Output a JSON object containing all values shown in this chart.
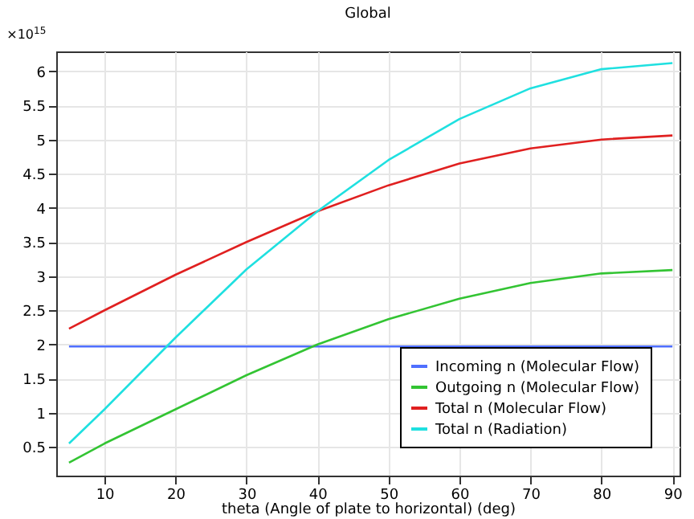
{
  "chart_data": {
    "type": "line",
    "title": "Global",
    "xlabel": "theta (Angle of plate to horizontal) (deg)",
    "x": [
      5,
      10,
      20,
      30,
      40,
      50,
      60,
      70,
      80,
      90
    ],
    "series": [
      {
        "name": "Incoming n (Molecular Flow)",
        "color": "#4f6fff",
        "values": [
          1.97,
          1.97,
          1.97,
          1.97,
          1.97,
          1.97,
          1.97,
          1.97,
          1.97,
          1.97
        ]
      },
      {
        "name": "Outgoing n (Molecular Flow)",
        "color": "#33c433",
        "values": [
          0.27,
          0.55,
          1.05,
          1.55,
          2.0,
          2.37,
          2.67,
          2.9,
          3.04,
          3.09
        ]
      },
      {
        "name": "Total n (Molecular Flow)",
        "color": "#e02020",
        "values": [
          2.23,
          2.5,
          3.02,
          3.5,
          3.95,
          4.33,
          4.65,
          4.87,
          5.0,
          5.06
        ]
      },
      {
        "name": "Total n (Radiation)",
        "color": "#1fe0e0",
        "values": [
          0.55,
          1.05,
          2.1,
          3.1,
          3.95,
          4.7,
          5.3,
          5.75,
          6.03,
          6.12
        ]
      }
    ],
    "xlim": [
      3.2,
      91
    ],
    "xticks": [
      10,
      20,
      30,
      40,
      50,
      60,
      70,
      80,
      90
    ],
    "ylim": [
      0.08,
      6.29
    ],
    "yticks": [
      0.5,
      1,
      1.5,
      2,
      2.5,
      3,
      3.5,
      4,
      4.5,
      5,
      5.5,
      6
    ],
    "annotations": [
      "×10$^{15}$"
    ],
    "grid": true,
    "legend": "bottom right",
    "marker": "none",
    "line_style": "solid"
  }
}
